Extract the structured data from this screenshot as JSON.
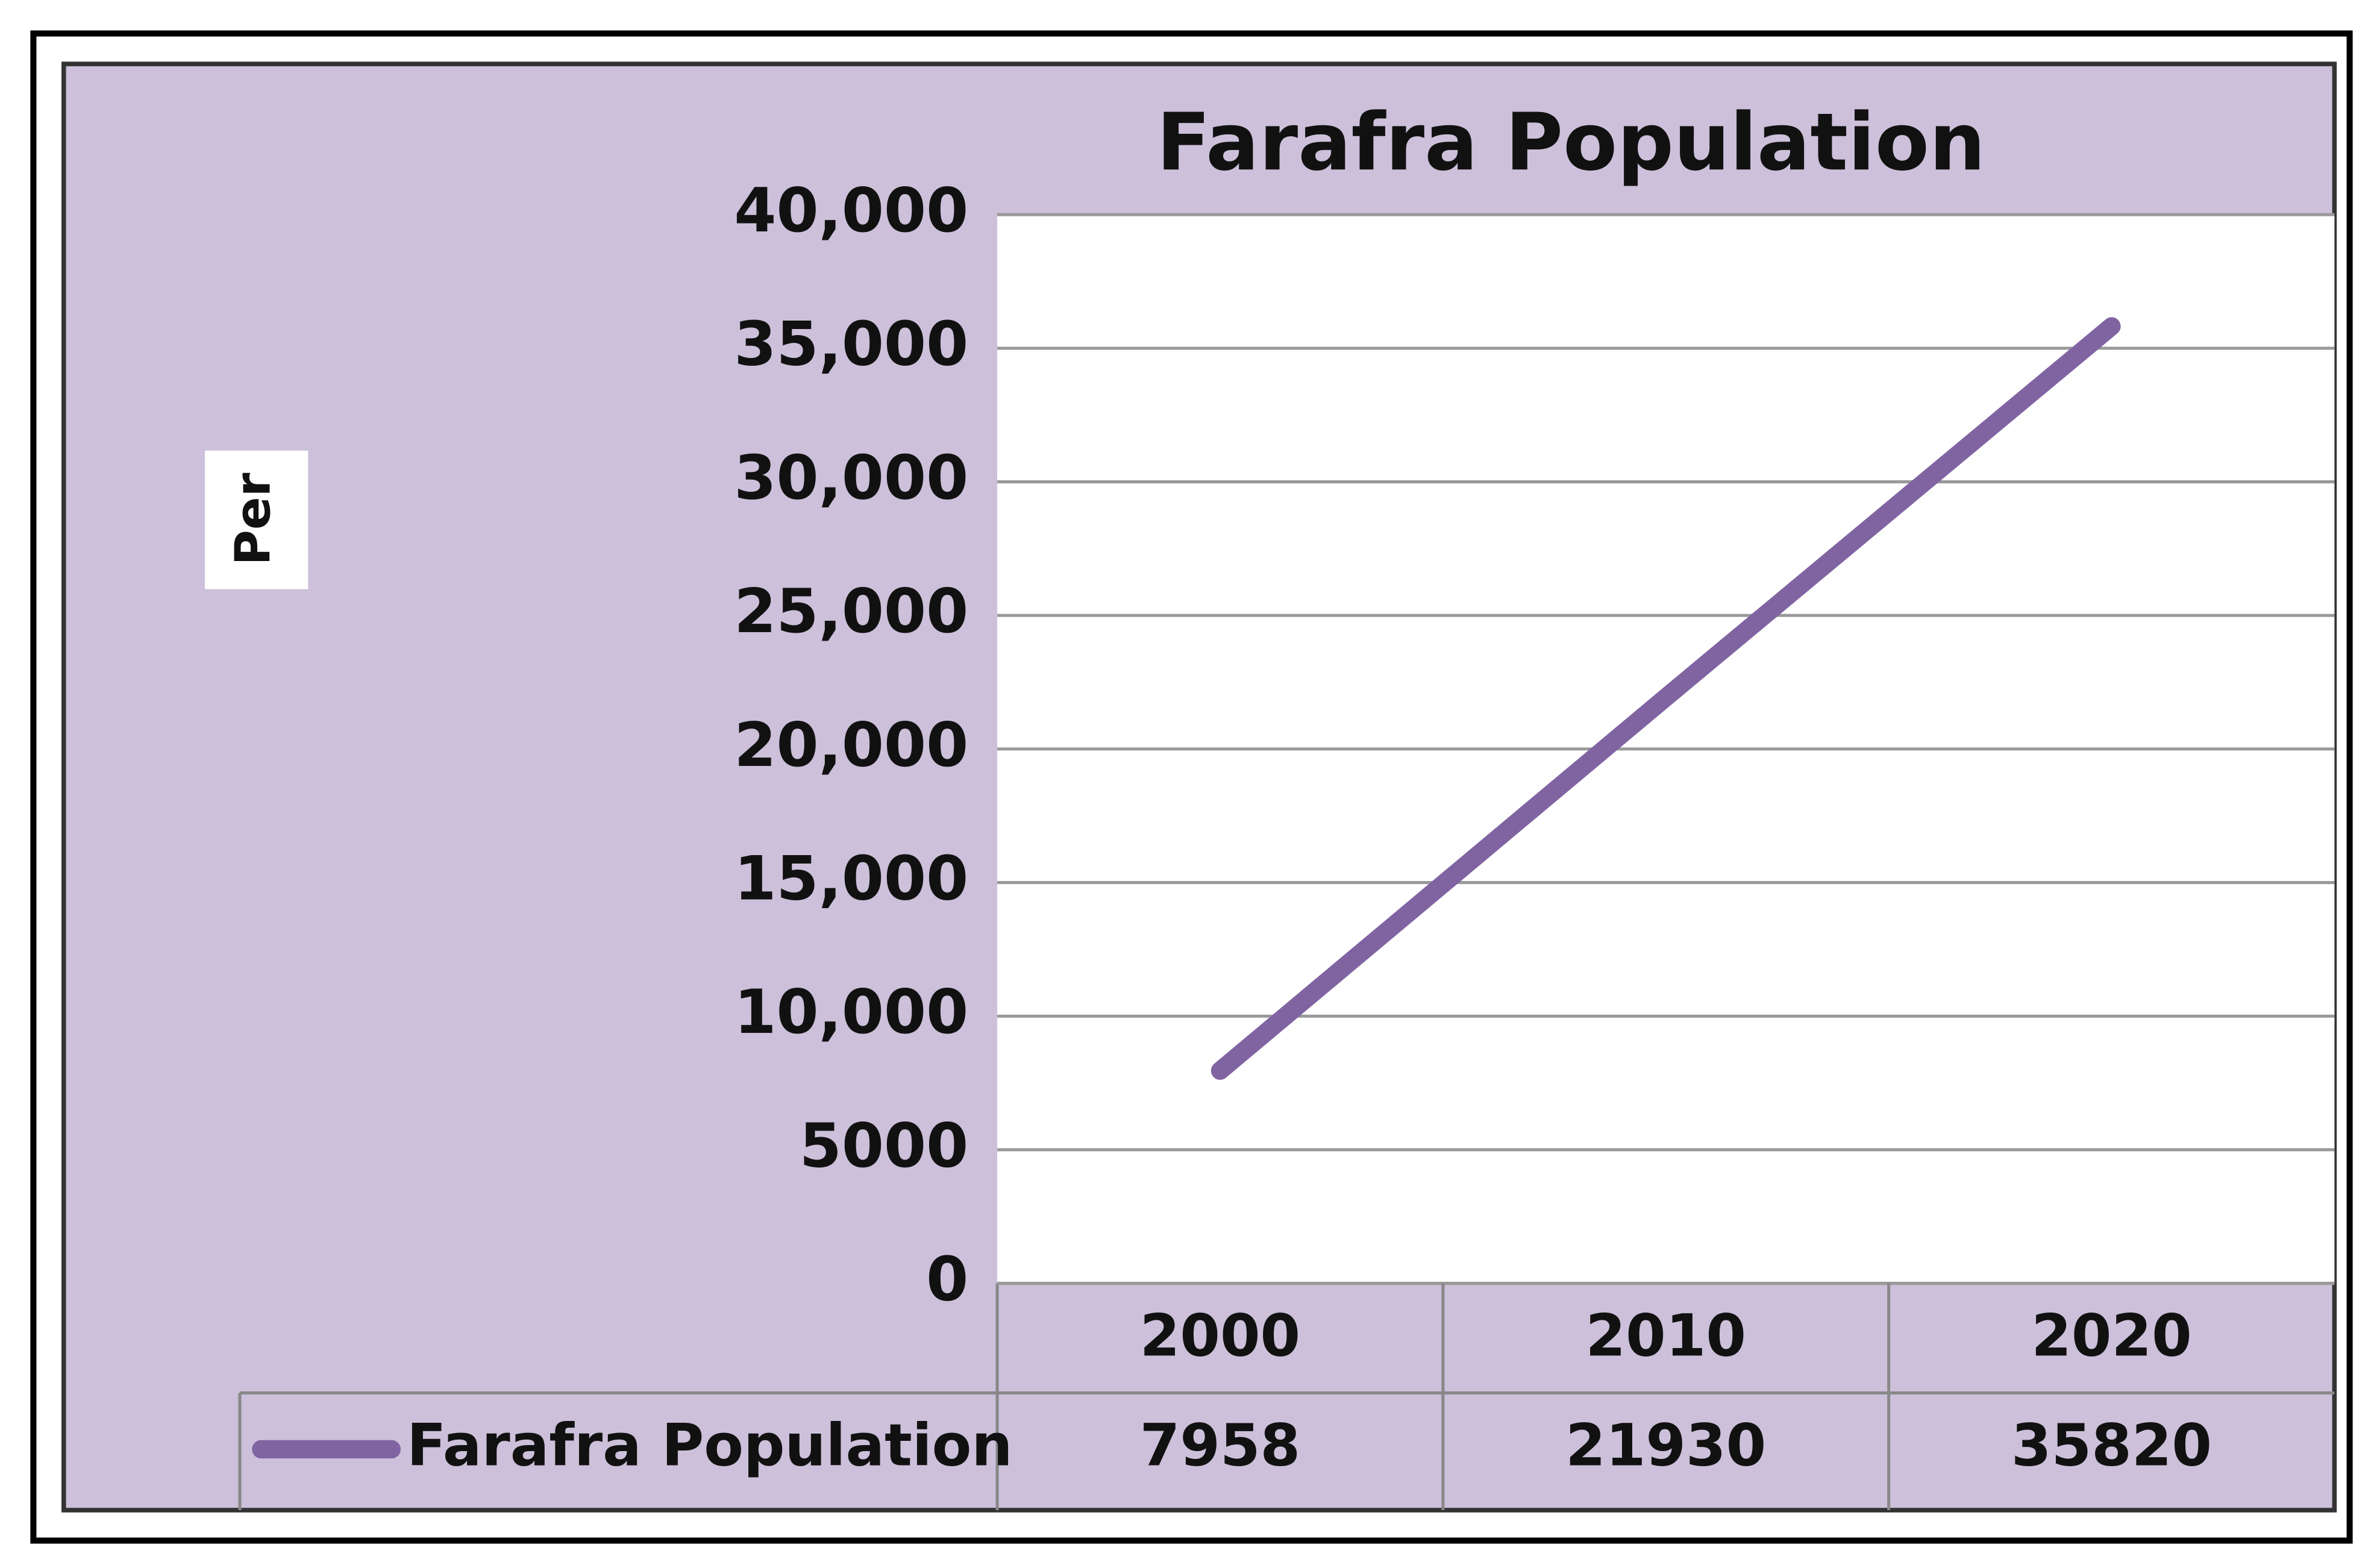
{
  "chart_data": {
    "type": "line",
    "title": "Farafra Population",
    "y_label": "Per",
    "categories": [
      "2000",
      "2010",
      "2020"
    ],
    "series": [
      {
        "name": "Farafra Population",
        "color": "#8064a2",
        "values": [
          7958,
          21930,
          35820
        ]
      }
    ],
    "ylim": [
      0,
      40000
    ],
    "yticks": [
      0,
      5000,
      {
        "value": 10000,
        "label": "10,000"
      },
      {
        "value": 15000,
        "label": "15,000"
      },
      {
        "value": 20000,
        "label": "20,000"
      },
      {
        "value": 25000,
        "label": "25,000"
      },
      {
        "value": 30000,
        "label": "30,000"
      },
      {
        "value": 35000,
        "label": "35,000"
      },
      {
        "value": 40000,
        "label": "40,000"
      }
    ],
    "grid": true,
    "data_table": true
  }
}
